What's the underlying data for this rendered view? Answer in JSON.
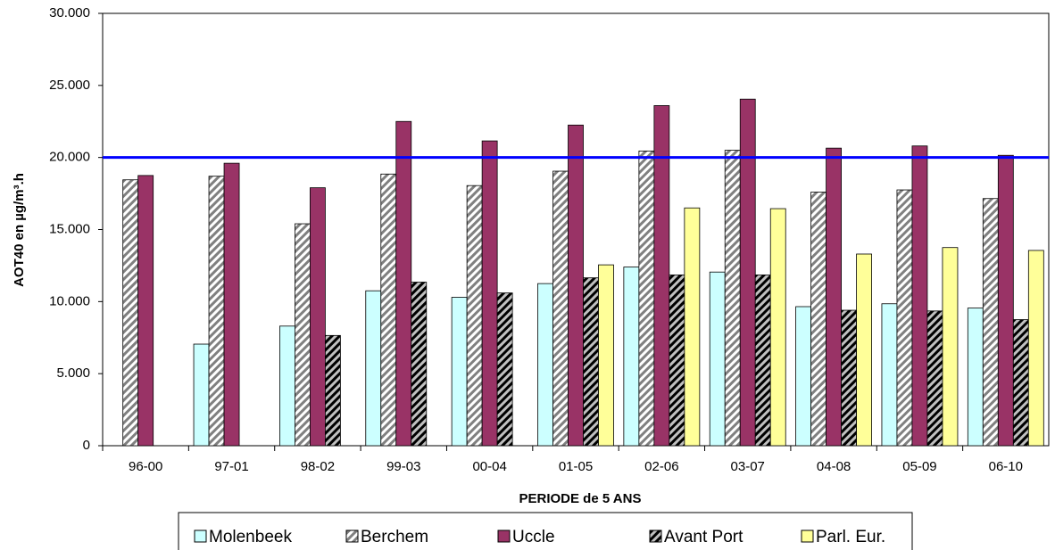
{
  "chart_data": {
    "type": "bar",
    "y_label": "AOT40 en µg/m³.h",
    "x_label": "PERIODE de 5 ANS",
    "categories": [
      "96-00",
      "97-01",
      "98-02",
      "99-03",
      "00-04",
      "01-05",
      "02-06",
      "03-07",
      "04-08",
      "05-09",
      "06-10"
    ],
    "series": [
      {
        "name": "Molenbeek",
        "color": "#ccffff",
        "values": [
          null,
          7050,
          8300,
          10750,
          10300,
          11250,
          12400,
          12050,
          9650,
          9850,
          9550
        ]
      },
      {
        "name": "Berchem",
        "color": "#ffffff",
        "hatch": "#808080",
        "values": [
          18450,
          18700,
          15400,
          18850,
          18050,
          19050,
          20450,
          20500,
          17600,
          17750,
          17150
        ]
      },
      {
        "name": "Uccle",
        "color": "#993366",
        "values": [
          18750,
          19600,
          17900,
          22500,
          21150,
          22250,
          23600,
          24050,
          20650,
          20800,
          20150
        ]
      },
      {
        "name": "Avant Port",
        "color": "#c0c0c0",
        "hatch": "#000000",
        "values": [
          null,
          null,
          7650,
          11350,
          10600,
          11650,
          11850,
          11850,
          9400,
          9350,
          8750
        ]
      },
      {
        "name": "Parl. Eur.",
        "color": "#ffff99",
        "values": [
          null,
          null,
          null,
          null,
          null,
          12550,
          16500,
          16450,
          13300,
          13750,
          13550
        ]
      }
    ],
    "threshold": 20000,
    "threshold_color": "#0000ff",
    "ylim": [
      0,
      30000
    ],
    "yticks": [
      0,
      {
        "value": 5000,
        "label": "5.000"
      },
      {
        "value": 10000,
        "label": "10.000"
      },
      {
        "value": 15000,
        "label": "15.000"
      },
      {
        "value": 20000,
        "label": "20.000"
      },
      {
        "value": 25000,
        "label": "25.000"
      },
      {
        "value": 30000,
        "label": "30.000"
      }
    ],
    "legend": "bottom"
  }
}
